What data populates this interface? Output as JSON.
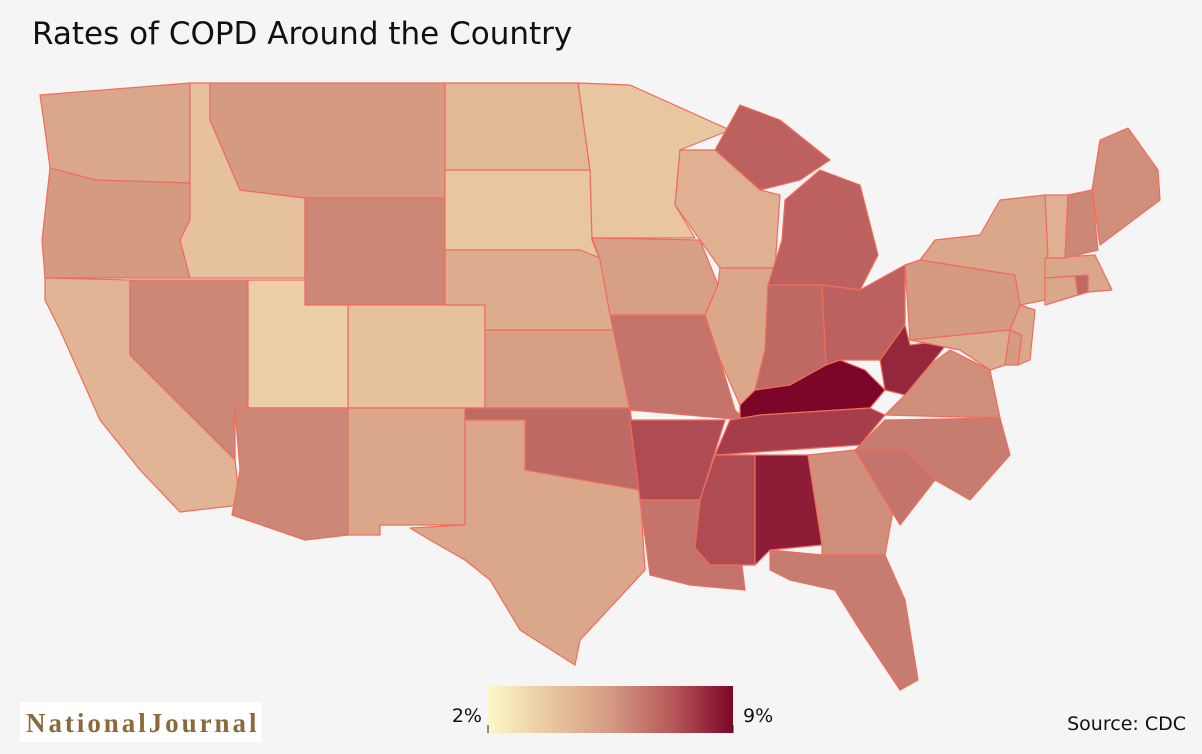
{
  "chart_data": {
    "type": "choropleth",
    "title": "Rates of COPD Around the Country",
    "source": "Source: CDC",
    "logo": "NationalJournal",
    "values": [
      5.0,
      5.5,
      4.5,
      6.0,
      4.0,
      5.5,
      6.0,
      3.5,
      4.0,
      6.0,
      5.0,
      4.3,
      3.8,
      4.8,
      5.3,
      6.8,
      5.0,
      3.8,
      5.3,
      6.5,
      7.5,
      6.5,
      4.6,
      5.0,
      7.0,
      6.8,
      7.0,
      9.0,
      7.8,
      7.5,
      8.5,
      5.8,
      6.3,
      6.5,
      6.3,
      5.8,
      8.3,
      5.5,
      5.0,
      4.8,
      5.5,
      5.0,
      5.0,
      6.8,
      5.0,
      4.6,
      6.0,
      5.8
    ],
    "border_color": "#f26b5b",
    "colorbar": {
      "range": [
        2,
        9
      ],
      "ticks": [
        {
          "value": 2,
          "label": "2%"
        },
        {
          "value": 9,
          "label": "9%"
        }
      ],
      "colors": [
        "#fdf8c8",
        "#e9c7a1",
        "#d49a82",
        "#b8585a",
        "#7c0627"
      ]
    }
  }
}
